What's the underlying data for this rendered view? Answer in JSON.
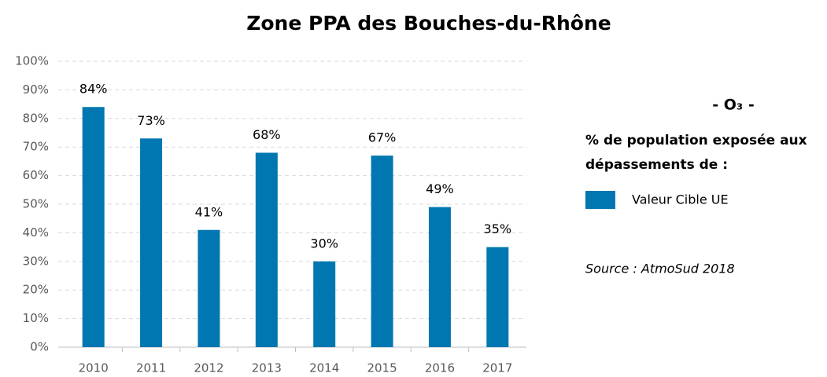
{
  "chart_data": {
    "type": "bar",
    "title": "Zone PPA des Bouches-du-Rhône",
    "categories": [
      "2010",
      "2011",
      "2012",
      "2013",
      "2014",
      "2015",
      "2016",
      "2017"
    ],
    "series": [
      {
        "name": "Valeur Cible UE",
        "color": "#0077b0",
        "values": [
          84,
          73,
          41,
          68,
          30,
          67,
          49,
          35
        ],
        "value_labels": [
          "84%",
          "73%",
          "41%",
          "68%",
          "30%",
          "67%",
          "49%",
          "35%"
        ]
      }
    ],
    "ylim": [
      0,
      100
    ],
    "yticks": [
      {
        "value": 0,
        "label": "0%"
      },
      {
        "value": 10,
        "label": "10%"
      },
      {
        "value": 20,
        "label": "20%"
      },
      {
        "value": 30,
        "label": "30%"
      },
      {
        "value": 40,
        "label": "40%"
      },
      {
        "value": 50,
        "label": "50%"
      },
      {
        "value": 60,
        "label": "60%"
      },
      {
        "value": 70,
        "label": "70%"
      },
      {
        "value": 80,
        "label": "80%"
      },
      {
        "value": 90,
        "label": "90%"
      },
      {
        "value": 100,
        "label": "100%"
      }
    ],
    "grid": true,
    "annotations": {
      "pollutant": "- O₃ -",
      "description": [
        "% de population exposée aux",
        "dépassements de :"
      ],
      "source": "Source : AtmoSud 2018"
    }
  }
}
